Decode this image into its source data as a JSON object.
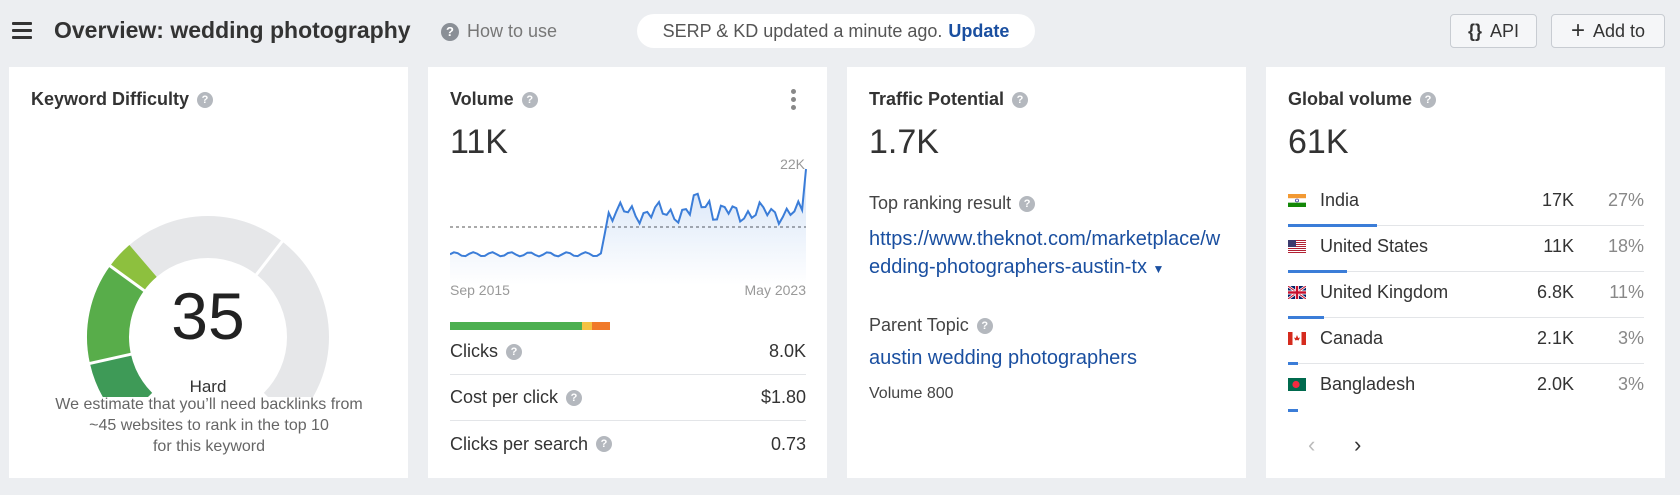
{
  "header": {
    "title": "Overview: wedding photography",
    "how_to_use": "How to use",
    "serp_status": "SERP & KD updated a minute ago.",
    "update_link": "Update",
    "api_label": "API",
    "api_icon": "{}",
    "add_to_label": "Add to",
    "add_icon": "+"
  },
  "kd": {
    "title": "Keyword Difficulty",
    "score": "35",
    "level": "Hard",
    "desc_line1": "We estimate that you’ll need backlinks from",
    "desc_line2": "~45 websites to rank in the top 10",
    "desc_line3": "for this keyword",
    "colors": [
      "#3e9a57",
      "#58ad4a",
      "#8dc03e"
    ]
  },
  "volume": {
    "title": "Volume",
    "value": "11K",
    "chart_max": "22K",
    "date_start": "Sep 2015",
    "date_end": "May 2023",
    "clicks_label": "Clicks",
    "clicks_value": "8.0K",
    "cpc_label": "Cost per click",
    "cpc_value": "$1.80",
    "cps_label": "Clicks per search",
    "cps_value": "0.73",
    "click_bar_colors": [
      "#4caf50",
      "#f5c242",
      "#f07a2a"
    ],
    "line_color": "#3b7dd8"
  },
  "traffic": {
    "title": "Traffic Potential",
    "value": "1.7K",
    "top_result_label": "Top ranking result",
    "top_result_url": "https://www.theknot.com/marketplace/wedding-photographers-austin-tx",
    "parent_topic_label": "Parent Topic",
    "parent_topic": "austin wedding photographers",
    "parent_volume": "Volume 800"
  },
  "global": {
    "title": "Global volume",
    "value": "61K",
    "countries": [
      {
        "name": "India",
        "volume": "17K",
        "share": "27%",
        "share_frac": 0.27
      },
      {
        "name": "United States",
        "volume": "11K",
        "share": "18%",
        "share_frac": 0.18
      },
      {
        "name": "United Kingdom",
        "volume": "6.8K",
        "share": "11%",
        "share_frac": 0.11
      },
      {
        "name": "Canada",
        "volume": "2.1K",
        "share": "3%",
        "share_frac": 0.03
      },
      {
        "name": "Bangladesh",
        "volume": "2.0K",
        "share": "3%",
        "share_frac": 0.03
      }
    ],
    "prev_icon": "‹",
    "next_icon": "›"
  }
}
